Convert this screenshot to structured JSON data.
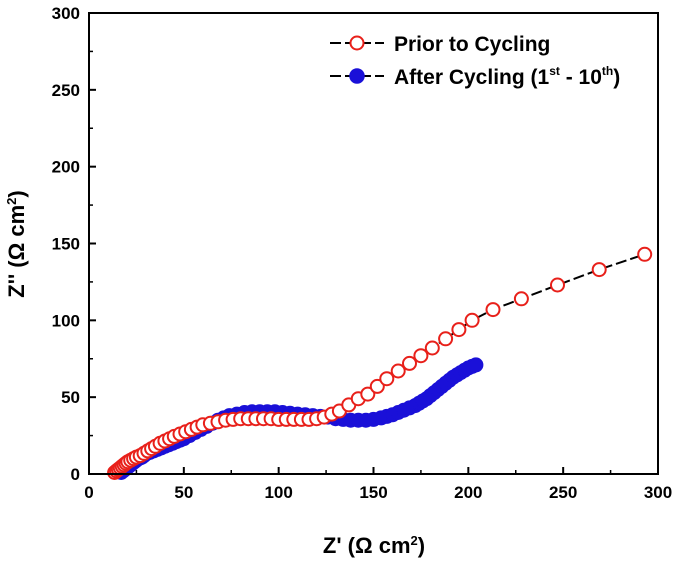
{
  "chart_data": {
    "type": "scatter",
    "xlabel": {
      "main": "Z' (Ω cm",
      "sup": "2",
      "end": ")"
    },
    "ylabel": {
      "main": "Z'' (Ω cm",
      "sup": "2",
      "end": ")"
    },
    "xlim": [
      0,
      300
    ],
    "ylim": [
      0,
      300
    ],
    "xticks": [
      "0",
      "50",
      "100",
      "150",
      "200",
      "250",
      "300"
    ],
    "yticks": [
      "0",
      "50",
      "100",
      "150",
      "200",
      "250",
      "300"
    ],
    "grid": false,
    "legend_position": "top-right",
    "series": [
      {
        "name": "Prior to Cycling",
        "legend": {
          "text": "Prior to Cycling"
        },
        "marker": "open-circle",
        "color": "#e8201a",
        "line_color": "#000000",
        "x": [
          13.5,
          14.5,
          15.5,
          16.5,
          17.5,
          18.5,
          19.5,
          20.5,
          22,
          23.5,
          25,
          27,
          29,
          31,
          33,
          35,
          37.5,
          40,
          42.5,
          45,
          48,
          51,
          54,
          57,
          60,
          64,
          68,
          72,
          76,
          80,
          84,
          88,
          92,
          96,
          100,
          104,
          108,
          112,
          116,
          120,
          124,
          128,
          132,
          137,
          142,
          147,
          152,
          157,
          163,
          169,
          175,
          181,
          188,
          195,
          202,
          213,
          228,
          247,
          269,
          293
        ],
        "y": [
          1,
          2,
          3,
          4,
          5,
          6,
          7,
          8,
          9,
          10,
          11,
          12,
          13.5,
          15,
          16.5,
          18,
          20,
          21.5,
          23,
          24.5,
          26,
          27.5,
          29,
          30.5,
          32,
          33,
          34,
          35,
          35.5,
          36,
          36,
          36,
          36,
          36,
          35.5,
          35.5,
          35.5,
          35.5,
          35.5,
          36,
          37,
          39,
          41,
          45,
          49,
          52,
          57,
          62,
          67,
          72,
          77,
          82,
          88,
          94,
          100,
          107,
          114,
          123,
          133,
          143
        ]
      },
      {
        "name": "After Cycling (1st - 10th)",
        "legend": {
          "pre": "After Cycling (1",
          "sup1": "st",
          "mid": " - 10",
          "sup2": "th",
          "post": ")"
        },
        "marker": "filled-circle",
        "color": "#1a10d8",
        "line_color": "#000000",
        "x": [
          17,
          18,
          19,
          20,
          21,
          22,
          23,
          24,
          25,
          26,
          27,
          28,
          29,
          30,
          32,
          34,
          36,
          38,
          40,
          42,
          44,
          46,
          48,
          50,
          53,
          56,
          59,
          62,
          65,
          68,
          71,
          74,
          78,
          82,
          86,
          90,
          94,
          98,
          102,
          106,
          110,
          114,
          118,
          122,
          126,
          130,
          134,
          138,
          142,
          146,
          150,
          154,
          157,
          160,
          163,
          166,
          169,
          172,
          174,
          176,
          178,
          180,
          182,
          184,
          186,
          188,
          190,
          192,
          194,
          196,
          198,
          200,
          202,
          204
        ],
        "y": [
          1,
          2,
          3,
          4,
          5,
          6,
          7,
          8,
          9,
          10,
          10.5,
          11,
          12,
          13,
          14,
          15,
          16,
          17,
          18,
          19,
          20,
          21,
          22,
          23,
          25,
          27,
          29,
          31,
          33,
          35,
          36.5,
          38,
          39,
          40,
          40.5,
          40.5,
          40.5,
          40.5,
          40,
          39.5,
          39,
          38.5,
          38,
          37.5,
          37,
          36,
          35.5,
          35,
          35,
          35,
          35.5,
          36.5,
          37.5,
          38.5,
          40,
          41.5,
          43,
          44.5,
          46,
          47.5,
          49,
          51,
          53,
          55,
          57,
          59,
          61,
          63,
          64.5,
          66,
          67.5,
          69,
          70,
          71
        ]
      }
    ]
  }
}
